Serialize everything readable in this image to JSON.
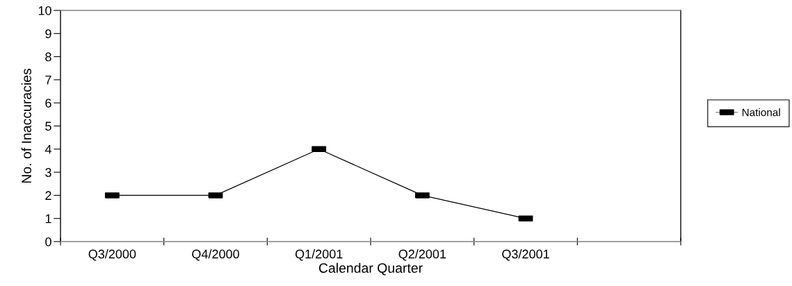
{
  "chart_data": {
    "type": "line",
    "xlabel": "Calendar Quarter",
    "ylabel": "No. of Inaccuracies",
    "categories": [
      "Q3/2000",
      "Q4/2000",
      "Q1/2001",
      "Q2/2001",
      "Q3/2001",
      null
    ],
    "series": [
      {
        "name": "National",
        "color": "#000000",
        "values": [
          2,
          2,
          4,
          2,
          1,
          null
        ]
      }
    ],
    "ylim": [
      0,
      10
    ],
    "yticks": [
      0,
      1,
      2,
      3,
      4,
      5,
      6,
      7,
      8,
      9,
      10
    ],
    "marker": "square",
    "line_style": "solid",
    "legend": "right",
    "grid": false
  }
}
